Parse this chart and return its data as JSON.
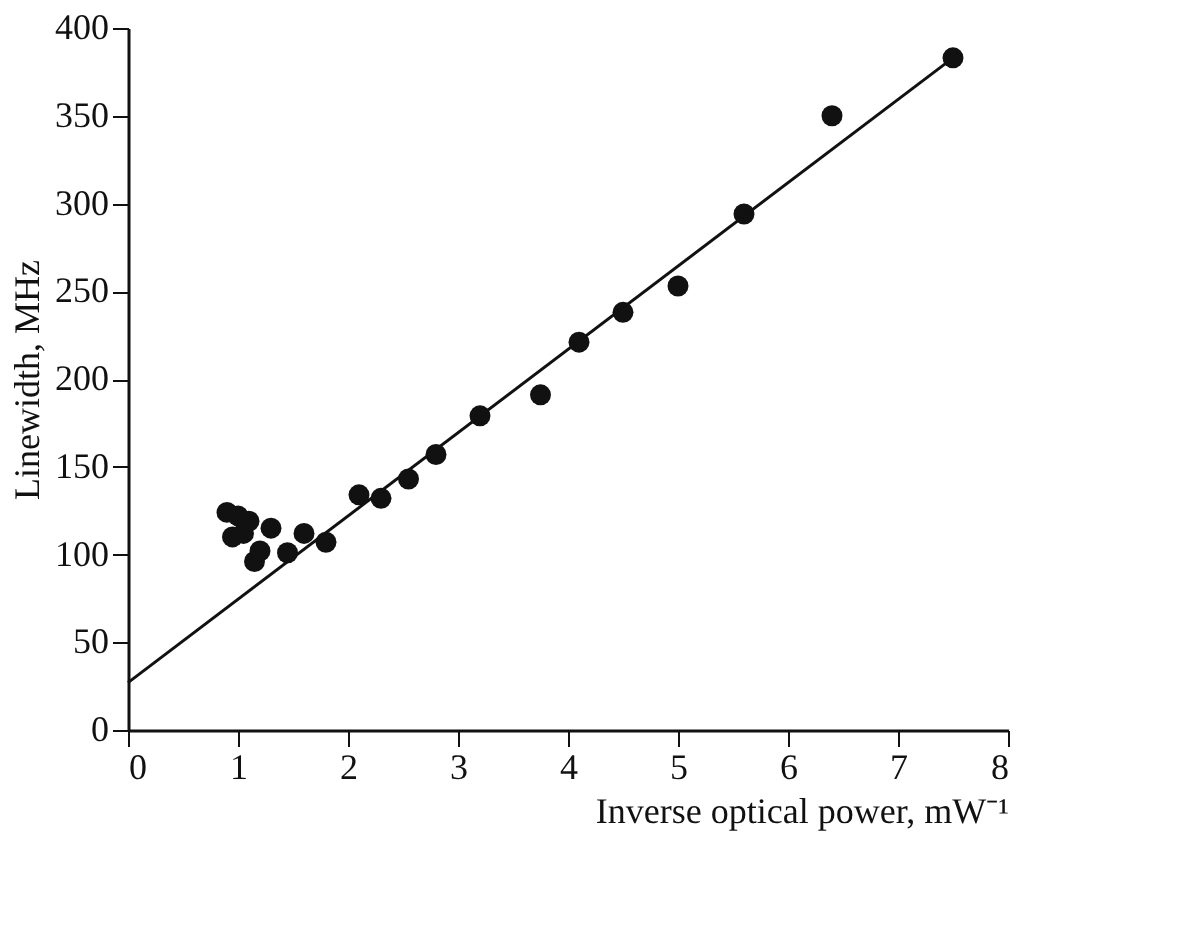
{
  "chart_data": {
    "type": "scatter",
    "xlabel": "Inverse optical power, mW⁻¹",
    "ylabel": "Linewidth, MHz",
    "xlim": [
      0,
      8
    ],
    "xticks": [
      0,
      1,
      2,
      3,
      4,
      5,
      6,
      7,
      8
    ],
    "ylim": [
      0,
      400
    ],
    "yticks": [
      0,
      50,
      100,
      150,
      200,
      250,
      300,
      350,
      400
    ],
    "grid": false,
    "series": [
      {
        "color": "#111111",
        "marker": "circle",
        "x": [
          0.9,
          0.95,
          1.0,
          1.05,
          1.1,
          1.15,
          1.2,
          1.3,
          1.45,
          1.6,
          1.8,
          2.1,
          2.3,
          2.55,
          2.8,
          3.2,
          3.75,
          4.1,
          4.5,
          5.0,
          5.6,
          6.4,
          7.5
        ],
        "values": [
          124,
          110,
          122,
          112,
          119,
          96,
          102,
          115,
          101,
          112,
          107,
          134,
          132,
          143,
          157,
          179,
          191,
          221,
          238,
          253,
          294,
          350,
          383
        ]
      },
      {
        "type": "line",
        "color": "#111111",
        "line_style": "solid",
        "marker": "none",
        "x": [
          0,
          7.5
        ],
        "values": [
          27,
          383
        ]
      }
    ]
  }
}
